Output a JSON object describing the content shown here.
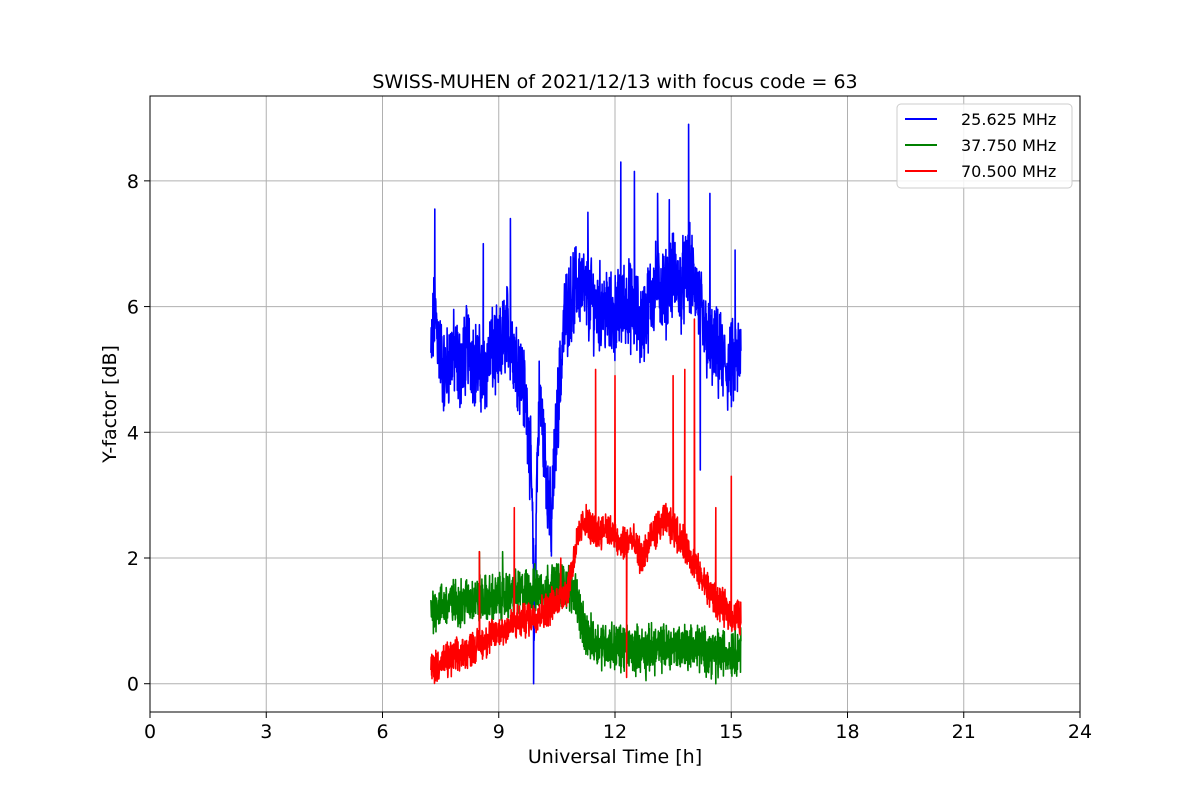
{
  "chart_data": {
    "type": "line",
    "title": "SWISS-MUHEN of 2021/12/13 with focus code = 63",
    "xlabel": "Universal Time [h]",
    "ylabel": "Y-factor [dB]",
    "xlim": [
      0,
      24
    ],
    "ylim": [
      -0.45,
      9.35
    ],
    "xticks": [
      0,
      3,
      6,
      9,
      12,
      15,
      18,
      21,
      24
    ],
    "yticks": [
      0,
      2,
      4,
      6,
      8
    ],
    "grid": true,
    "legend_position": "top-right",
    "series": [
      {
        "name": "25.625 MHz",
        "color": "#0000ff",
        "noise_amplitude": 0.55,
        "points": [
          [
            7.25,
            5.2
          ],
          [
            7.35,
            6.0
          ],
          [
            7.45,
            5.4
          ],
          [
            7.6,
            4.9
          ],
          [
            7.8,
            5.3
          ],
          [
            8.0,
            5.0
          ],
          [
            8.2,
            5.4
          ],
          [
            8.4,
            5.1
          ],
          [
            8.6,
            4.9
          ],
          [
            8.8,
            5.3
          ],
          [
            9.0,
            5.2
          ],
          [
            9.2,
            5.7
          ],
          [
            9.4,
            5.3
          ],
          [
            9.6,
            4.9
          ],
          [
            9.75,
            4.2
          ],
          [
            9.85,
            3.2
          ],
          [
            9.92,
            0.8
          ],
          [
            9.97,
            3.0
          ],
          [
            10.05,
            4.6
          ],
          [
            10.2,
            3.6
          ],
          [
            10.35,
            2.5
          ],
          [
            10.5,
            4.2
          ],
          [
            10.7,
            5.8
          ],
          [
            10.9,
            6.2
          ],
          [
            11.1,
            6.4
          ],
          [
            11.3,
            6.1
          ],
          [
            11.5,
            6.0
          ],
          [
            11.7,
            6.0
          ],
          [
            11.9,
            5.8
          ],
          [
            12.1,
            5.9
          ],
          [
            12.3,
            6.1
          ],
          [
            12.5,
            5.9
          ],
          [
            12.7,
            5.7
          ],
          [
            12.9,
            6.1
          ],
          [
            13.1,
            6.4
          ],
          [
            13.3,
            6.2
          ],
          [
            13.5,
            6.5
          ],
          [
            13.7,
            6.3
          ],
          [
            13.9,
            6.6
          ],
          [
            14.1,
            6.3
          ],
          [
            14.3,
            5.6
          ],
          [
            14.5,
            5.3
          ],
          [
            14.7,
            5.2
          ],
          [
            14.9,
            5.0
          ],
          [
            15.1,
            5.1
          ],
          [
            15.25,
            5.2
          ]
        ],
        "spikes": [
          [
            7.35,
            7.55
          ],
          [
            8.6,
            7.0
          ],
          [
            9.3,
            7.4
          ],
          [
            9.9,
            0.0
          ],
          [
            10.35,
            2.1
          ],
          [
            11.3,
            7.5
          ],
          [
            12.15,
            8.3
          ],
          [
            12.5,
            8.15
          ],
          [
            13.1,
            7.8
          ],
          [
            13.4,
            7.7
          ],
          [
            13.9,
            8.9
          ],
          [
            14.2,
            3.4
          ],
          [
            14.45,
            7.8
          ],
          [
            15.1,
            6.9
          ]
        ]
      },
      {
        "name": "37.750 MHz",
        "color": "#008000",
        "noise_amplitude": 0.3,
        "points": [
          [
            7.25,
            1.2
          ],
          [
            7.6,
            1.25
          ],
          [
            8.0,
            1.3
          ],
          [
            8.4,
            1.35
          ],
          [
            8.8,
            1.35
          ],
          [
            9.2,
            1.4
          ],
          [
            9.6,
            1.45
          ],
          [
            10.0,
            1.5
          ],
          [
            10.4,
            1.55
          ],
          [
            10.8,
            1.55
          ],
          [
            11.0,
            1.45
          ],
          [
            11.2,
            0.8
          ],
          [
            11.5,
            0.65
          ],
          [
            12.0,
            0.6
          ],
          [
            12.5,
            0.55
          ],
          [
            13.0,
            0.55
          ],
          [
            13.5,
            0.6
          ],
          [
            14.0,
            0.6
          ],
          [
            14.5,
            0.5
          ],
          [
            15.0,
            0.5
          ],
          [
            15.25,
            0.55
          ]
        ],
        "spikes": [
          [
            8.5,
            2.1
          ],
          [
            9.1,
            2.1
          ],
          [
            12.8,
            0.05
          ],
          [
            14.6,
            0.0
          ]
        ]
      },
      {
        "name": "70.500 MHz",
        "color": "#ff0000",
        "noise_amplitude": 0.22,
        "points": [
          [
            7.25,
            0.25
          ],
          [
            7.6,
            0.35
          ],
          [
            8.0,
            0.45
          ],
          [
            8.4,
            0.6
          ],
          [
            8.8,
            0.75
          ],
          [
            9.2,
            0.9
          ],
          [
            9.6,
            1.0
          ],
          [
            10.0,
            1.1
          ],
          [
            10.4,
            1.25
          ],
          [
            10.8,
            1.55
          ],
          [
            11.0,
            2.2
          ],
          [
            11.2,
            2.6
          ],
          [
            11.5,
            2.4
          ],
          [
            11.8,
            2.5
          ],
          [
            12.1,
            2.2
          ],
          [
            12.4,
            2.3
          ],
          [
            12.7,
            2.0
          ],
          [
            13.0,
            2.4
          ],
          [
            13.3,
            2.6
          ],
          [
            13.6,
            2.4
          ],
          [
            13.9,
            2.1
          ],
          [
            14.2,
            1.7
          ],
          [
            14.5,
            1.4
          ],
          [
            14.8,
            1.2
          ],
          [
            15.0,
            1.1
          ],
          [
            15.25,
            1.05
          ]
        ],
        "spikes": [
          [
            8.5,
            2.1
          ],
          [
            9.4,
            2.8
          ],
          [
            10.6,
            2.0
          ],
          [
            11.5,
            5.0
          ],
          [
            12.0,
            4.9
          ],
          [
            13.5,
            4.9
          ],
          [
            13.8,
            5.0
          ],
          [
            14.05,
            5.8
          ],
          [
            14.6,
            2.8
          ],
          [
            15.0,
            3.3
          ],
          [
            12.3,
            0.1
          ]
        ]
      }
    ]
  }
}
